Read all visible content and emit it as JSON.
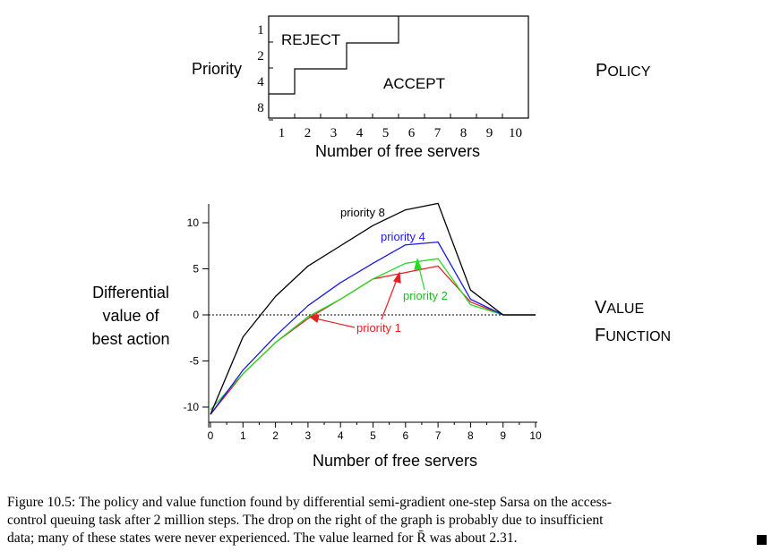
{
  "labels": {
    "policy_side_1": "P",
    "policy_side_2": "OLICY",
    "value_side_1a": "V",
    "value_side_1b": "ALUE",
    "value_side_2a": "F",
    "value_side_2b": "UNCTION"
  },
  "chart_data": [
    {
      "type": "step",
      "ylabel": "Priority",
      "xlabel": "Number of free servers",
      "x_ticks": [
        "1",
        "2",
        "3",
        "4",
        "5",
        "6",
        "7",
        "8",
        "9",
        "10"
      ],
      "y_ticks": [
        "1",
        "2",
        "4",
        "8"
      ],
      "region_labels": [
        "REJECT",
        "ACCEPT"
      ],
      "boundary": [
        {
          "priority": "8",
          "accept_from_servers": 1
        },
        {
          "priority": "4",
          "accept_from_servers": 2
        },
        {
          "priority": "2",
          "accept_from_servers": 4
        },
        {
          "priority": "1",
          "accept_from_servers": 6
        }
      ]
    },
    {
      "type": "line",
      "ylabel_lines": [
        "Differential",
        "value of",
        "best action"
      ],
      "xlabel": "Number of free servers",
      "x": [
        0,
        1,
        2,
        3,
        4,
        5,
        6,
        7,
        8,
        9,
        10
      ],
      "x_ticks": [
        "0",
        "1",
        "2",
        "3",
        "4",
        "5",
        "6",
        "7",
        "8",
        "9",
        "10"
      ],
      "y_ticks": [
        "10",
        "5",
        "0",
        "-5",
        "-10"
      ],
      "xlim": [
        0,
        10
      ],
      "ylim": [
        -12,
        12
      ],
      "series": [
        {
          "name": "priority 8",
          "color": "#000000",
          "values": [
            -10.8,
            -2.4,
            2.0,
            5.3,
            7.5,
            9.7,
            11.4,
            12.1,
            2.7,
            0.0,
            0.0
          ]
        },
        {
          "name": "priority 4",
          "color": "#1a1ae6",
          "values": [
            -10.8,
            -6.0,
            -2.3,
            1.0,
            3.5,
            5.6,
            7.6,
            7.9,
            1.7,
            0.0,
            0.0
          ]
        },
        {
          "name": "priority 2",
          "color": "#22dd22",
          "values": [
            -10.3,
            -6.4,
            -3.0,
            -0.2,
            1.7,
            3.9,
            5.6,
            6.1,
            1.1,
            0.0,
            0.0
          ]
        },
        {
          "name": "priority 1",
          "color": "#e62020",
          "values": [
            -10.8,
            -6.4,
            -3.0,
            -0.4,
            1.7,
            3.9,
            4.6,
            5.3,
            1.4,
            0.0,
            0.0
          ]
        }
      ]
    }
  ],
  "caption": {
    "lines": [
      "Figure 10.5: The policy and value function found by differential semi-gradient one-step Sarsa on the access-",
      "control queuing task after 2 million steps. The drop on the right of the graph is probably due to insufficient",
      "data; many of these states were never experienced. The value learned for R̄ was about 2.31."
    ]
  }
}
